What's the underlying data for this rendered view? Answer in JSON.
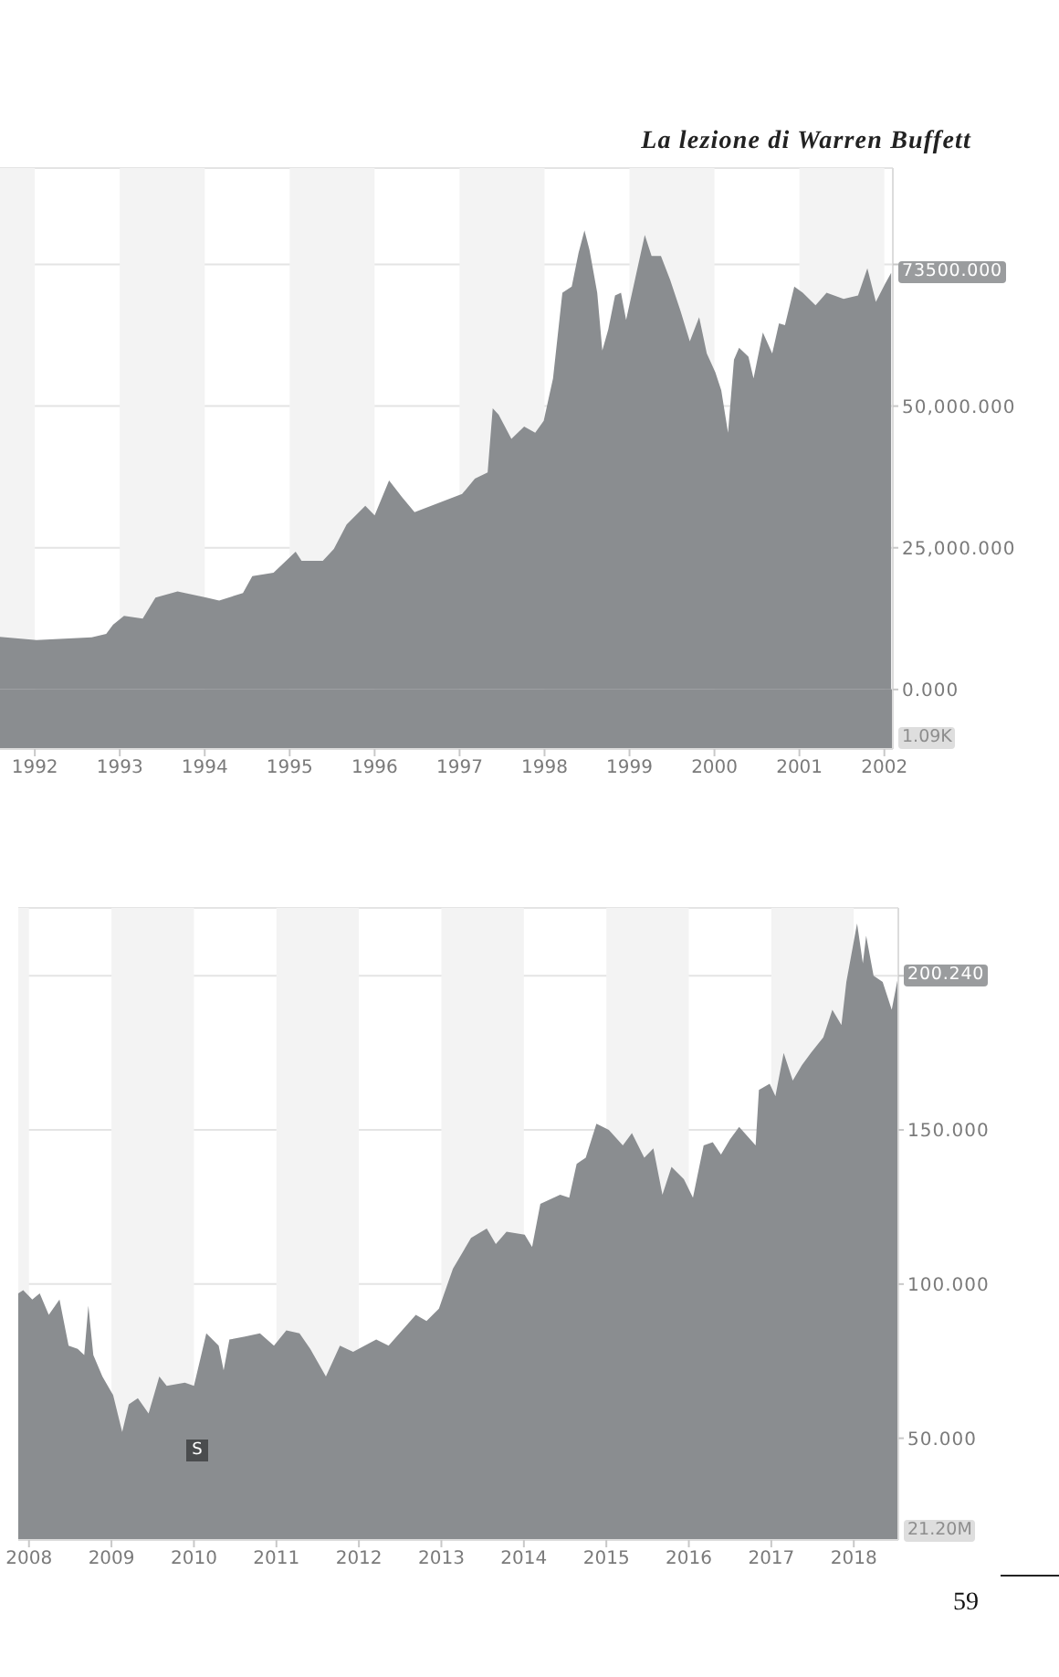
{
  "chart_data": [
    {
      "type": "area",
      "color": "#8a8d90",
      "x": [
        1991.59,
        1992.02,
        1992.67,
        1992.84,
        1992.92,
        1993.05,
        1993.27,
        1993.42,
        1993.68,
        1994.02,
        1994.17,
        1994.45,
        1994.56,
        1994.81,
        1995.07,
        1995.14,
        1995.39,
        1995.52,
        1995.67,
        1995.89,
        1996.0,
        1996.17,
        1996.32,
        1996.47,
        1996.75,
        1997.03,
        1997.18,
        1997.33,
        1997.39,
        1997.46,
        1997.61,
        1997.76,
        1997.89,
        1997.99,
        1998.1,
        1998.21,
        1998.32,
        1998.4,
        1998.47,
        1998.53,
        1998.62,
        1998.68,
        1998.75,
        1998.83,
        1998.9,
        1998.96,
        1999.07,
        1999.18,
        1999.26,
        1999.37,
        1999.48,
        1999.6,
        1999.71,
        1999.82,
        1999.91,
        2000.01,
        2000.08,
        2000.16,
        2000.23,
        2000.29,
        2000.4,
        2000.46,
        2000.57,
        2000.68,
        2000.76,
        2000.83,
        2000.94,
        2001.04,
        2001.19,
        2001.32,
        2001.52,
        2001.69,
        2001.8,
        2001.9,
        2002.01,
        2002.08
      ],
      "values": [
        9300,
        8700,
        9200,
        9800,
        11400,
        13000,
        12500,
        16200,
        17300,
        16200,
        15700,
        17000,
        20000,
        20600,
        24300,
        22700,
        22700,
        24800,
        29100,
        32400,
        30700,
        36900,
        34000,
        31300,
        32900,
        34500,
        37200,
        38300,
        49600,
        48500,
        44200,
        46400,
        45300,
        47400,
        54900,
        70000,
        71100,
        77000,
        81000,
        77500,
        70000,
        59800,
        63500,
        69500,
        70000,
        65200,
        72700,
        80200,
        76500,
        76500,
        72200,
        66800,
        61400,
        65700,
        59300,
        56000,
        52800,
        45300,
        58200,
        60300,
        58700,
        54900,
        63000,
        59300,
        64600,
        64300,
        71100,
        70000,
        67800,
        70000,
        68900,
        69500,
        74300,
        68400,
        71600,
        73500
      ],
      "xlim": [
        1991.59,
        2002.1
      ],
      "xticks": [
        1992,
        1993,
        1994,
        1995,
        1996,
        1997,
        1998,
        1999,
        2000,
        2001,
        2002
      ],
      "ylim": [
        -10500,
        92000
      ],
      "yticks": [
        {
          "value": 0,
          "label": "0.000"
        },
        {
          "value": 25000,
          "label": "25,000.000"
        },
        {
          "value": 50000,
          "label": "50,000.000"
        },
        {
          "value": 75000,
          "label": null
        }
      ],
      "grid": "y",
      "bands": [
        {
          "axis": "x",
          "from": 1991.59,
          "to": 1992,
          "color": "#f3f3f3"
        },
        {
          "axis": "x",
          "from": 1993,
          "to": 1994,
          "color": "#f3f3f3"
        },
        {
          "axis": "x",
          "from": 1995,
          "to": 1996,
          "color": "#f3f3f3"
        },
        {
          "axis": "x",
          "from": 1997,
          "to": 1998,
          "color": "#f3f3f3"
        },
        {
          "axis": "x",
          "from": 1999,
          "to": 2000,
          "color": "#f3f3f3"
        },
        {
          "axis": "x",
          "from": 2001,
          "to": 2002,
          "color": "#f3f3f3"
        },
        {
          "axis": "y",
          "from": -10500,
          "to": 0,
          "color": "#8a8d90"
        }
      ],
      "annotations": [
        "La lezione di Warren Buffett",
        {
          "text": "73500.000",
          "x": 2002.08,
          "y": 73500
        },
        "1.09K"
      ]
    },
    {
      "type": "area",
      "color": "#8a8d90",
      "x": [
        2007.87,
        2007.93,
        2008.04,
        2008.13,
        2008.24,
        2008.37,
        2008.48,
        2008.59,
        2008.67,
        2008.72,
        2008.78,
        2008.89,
        2009.02,
        2009.13,
        2009.21,
        2009.32,
        2009.45,
        2009.58,
        2009.67,
        2009.89,
        2010.0,
        2010.08,
        2010.15,
        2010.3,
        2010.36,
        2010.43,
        2010.62,
        2010.8,
        2010.97,
        2011.12,
        2011.28,
        2011.41,
        2011.6,
        2011.77,
        2011.93,
        2012.21,
        2012.36,
        2012.69,
        2012.82,
        2012.97,
        2013.14,
        2013.36,
        2013.55,
        2013.66,
        2013.79,
        2014.01,
        2014.1,
        2014.2,
        2014.44,
        2014.55,
        2014.64,
        2014.75,
        2014.88,
        2015.03,
        2015.2,
        2015.31,
        2015.46,
        2015.57,
        2015.68,
        2015.79,
        2015.94,
        2016.05,
        2016.18,
        2016.29,
        2016.39,
        2016.5,
        2016.61,
        2016.81,
        2016.85,
        2016.98,
        2017.05,
        2017.15,
        2017.26,
        2017.37,
        2017.48,
        2017.63,
        2017.74,
        2017.85,
        2017.91,
        2018.04,
        2018.11,
        2018.15,
        2018.24,
        2018.35,
        2018.46,
        2018.54
      ],
      "values": [
        97,
        98,
        95,
        97,
        90,
        95,
        80,
        79,
        77,
        93,
        77,
        70,
        64,
        52,
        61,
        63,
        58,
        70,
        67,
        68,
        67,
        76,
        84,
        80,
        72,
        82,
        83,
        84,
        80,
        85,
        84,
        79,
        70,
        80,
        78,
        82,
        80,
        90,
        88,
        92,
        105,
        115,
        118,
        113,
        117,
        116,
        112,
        126,
        129,
        128,
        139,
        141,
        152,
        150,
        145,
        149,
        141,
        144,
        129,
        138,
        134,
        128,
        145,
        146,
        142,
        147,
        151,
        145,
        163,
        165,
        161,
        175,
        166,
        171,
        175,
        180,
        189,
        184,
        198,
        217,
        204,
        213,
        200,
        198,
        189,
        200
      ],
      "xlim": [
        2007.87,
        2018.54
      ],
      "xticks": [
        2008,
        2009,
        2010,
        2011,
        2012,
        2013,
        2014,
        2015,
        2016,
        2017,
        2018
      ],
      "ylim": [
        17,
        222
      ],
      "yticks": [
        {
          "value": 50,
          "label": "50.000"
        },
        {
          "value": 100,
          "label": "100.000"
        },
        {
          "value": 150,
          "label": "150.000"
        },
        {
          "value": 200,
          "label": null
        }
      ],
      "grid": "y",
      "bands": [
        {
          "axis": "x",
          "from": 2007.87,
          "to": 2008,
          "color": "#f3f3f3"
        },
        {
          "axis": "x",
          "from": 2009,
          "to": 2010,
          "color": "#f3f3f3"
        },
        {
          "axis": "x",
          "from": 2011,
          "to": 2012,
          "color": "#f3f3f3"
        },
        {
          "axis": "x",
          "from": 2013,
          "to": 2014,
          "color": "#f3f3f3"
        },
        {
          "axis": "x",
          "from": 2015,
          "to": 2016,
          "color": "#f3f3f3"
        },
        {
          "axis": "x",
          "from": 2017,
          "to": 2018,
          "color": "#f3f3f3"
        }
      ],
      "annotations": [
        {
          "text": "200.240",
          "x": 2018.54,
          "y": 200
        },
        {
          "text": "S",
          "x": 2010.04,
          "y": 46
        },
        "21.20M",
        "59"
      ]
    }
  ]
}
